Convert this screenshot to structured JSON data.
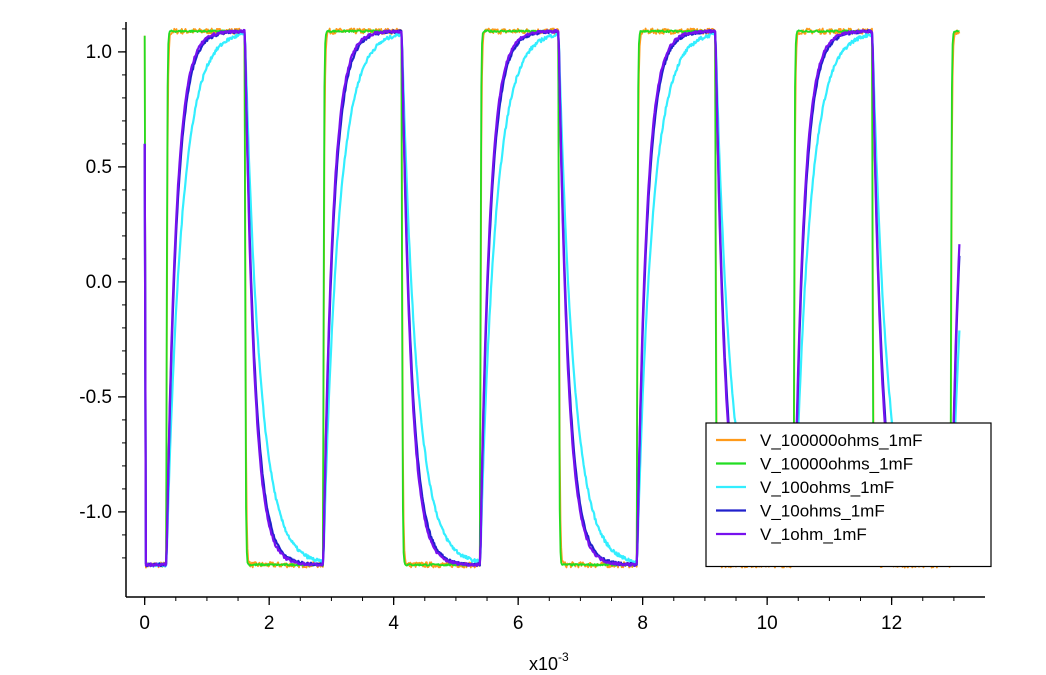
{
  "chart_data": {
    "type": "line",
    "title": "",
    "xlabel": "x10",
    "xlabel_exponent": "-3",
    "ylabel": "",
    "xlim": [
      -0.3,
      13.5
    ],
    "ylim": [
      -1.37,
      1.13
    ],
    "x_ticks": [
      0,
      2,
      4,
      6,
      8,
      10,
      12
    ],
    "y_ticks": [
      1.0,
      0.5,
      0.0,
      -0.5,
      -1.0
    ],
    "y_tick_labels": [
      "1.0",
      "0.5",
      "0.0",
      "-0.5",
      "-1.0"
    ],
    "grid": false,
    "legend_position": "bottom-right",
    "signal": {
      "high": 1.09,
      "low": -1.23,
      "first_rise": 0.35,
      "first_fall": 1.6,
      "half_period": 1.26,
      "x_end": 13.1
    },
    "series": [
      {
        "name": "V_100000ohms_1mF",
        "color": "#ff9a1a",
        "time_constant": 0.012,
        "noise": 0.012
      },
      {
        "name": "V_10000ohms_1mF",
        "color": "#22dd22",
        "time_constant": 0.008,
        "noise": 0.004
      },
      {
        "name": "V_100ohms_1mF",
        "color": "#33eeff",
        "time_constant": 0.24,
        "noise": 0.008
      },
      {
        "name": "V_10ohms_1mF",
        "color": "#2020cc",
        "time_constant": 0.16,
        "noise": 0.006
      },
      {
        "name": "V_1ohm_1mF",
        "color": "#7711ee",
        "time_constant": 0.15,
        "noise": 0.006
      }
    ]
  }
}
